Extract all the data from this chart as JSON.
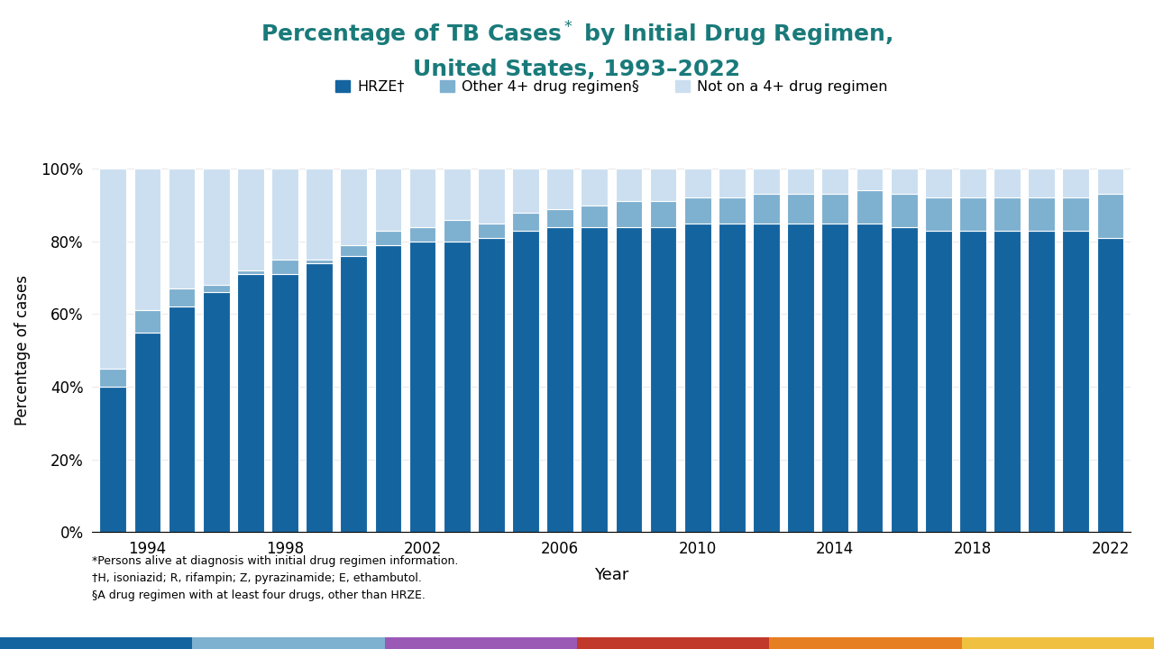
{
  "years": [
    1993,
    1994,
    1995,
    1996,
    1997,
    1998,
    1999,
    2000,
    2001,
    2002,
    2003,
    2004,
    2005,
    2006,
    2007,
    2008,
    2009,
    2010,
    2011,
    2012,
    2013,
    2014,
    2015,
    2016,
    2017,
    2018,
    2019,
    2020,
    2021,
    2022
  ],
  "hrze": [
    40,
    55,
    62,
    66,
    71,
    71,
    74,
    76,
    79,
    80,
    80,
    81,
    83,
    84,
    84,
    84,
    84,
    85,
    85,
    85,
    85,
    85,
    85,
    84,
    83,
    83,
    83,
    83,
    83,
    81
  ],
  "other4plus": [
    5,
    6,
    5,
    2,
    1,
    4,
    1,
    3,
    4,
    4,
    6,
    4,
    5,
    5,
    6,
    7,
    7,
    7,
    7,
    8,
    8,
    8,
    9,
    9,
    9,
    9,
    9,
    9,
    9,
    12
  ],
  "not4plus": [
    55,
    39,
    33,
    32,
    28,
    25,
    25,
    21,
    17,
    16,
    14,
    15,
    12,
    11,
    10,
    9,
    9,
    8,
    8,
    7,
    7,
    7,
    6,
    7,
    8,
    8,
    8,
    8,
    8,
    7
  ],
  "color_hrze": "#1464a0",
  "color_other4plus": "#7eb0d0",
  "color_not4plus": "#ccdff0",
  "ylabel": "Percentage of cases",
  "xlabel": "Year",
  "legend_hrze": "HRZE†",
  "legend_other": "Other 4+ drug regimen§",
  "legend_not": "Not on a 4+ drug regimen",
  "footnote1": "*Persons alive at diagnosis with initial drug regimen information.",
  "footnote2": "†H, isoniazid; R, rifampin; Z, pyrazinamide; E, ethambutol.",
  "footnote3": "§A drug regimen with at least four drugs, other than HRZE.",
  "title_color": "#1a7a7a",
  "bar_edge_color": "white",
  "background_color": "white",
  "yticks": [
    0,
    20,
    40,
    60,
    80,
    100
  ],
  "ytick_labels": [
    "0%",
    "20%",
    "40%",
    "60%",
    "80%",
    "100%"
  ],
  "strip_colors": [
    "#1464a0",
    "#7eb0d0",
    "#9b59b6",
    "#c0392b",
    "#e67e22",
    "#f0c040"
  ]
}
